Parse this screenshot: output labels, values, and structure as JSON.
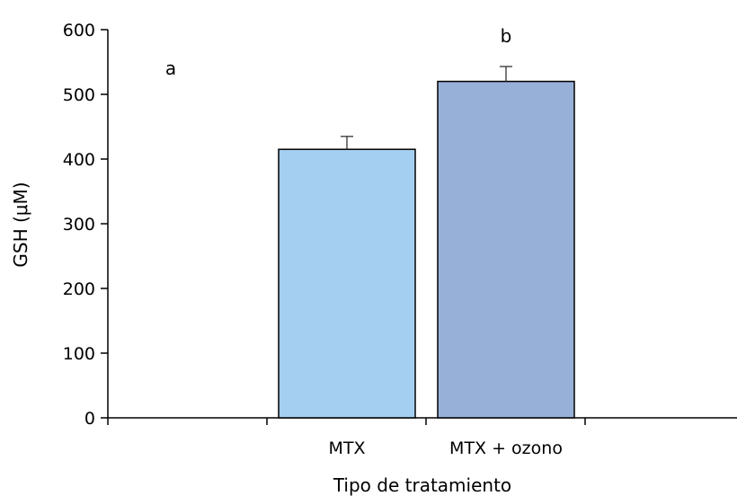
{
  "chart_data": {
    "type": "bar",
    "categories": [
      "MTX",
      "MTX + ozono"
    ],
    "values": [
      415,
      520
    ],
    "errors": [
      20,
      23
    ],
    "colors": [
      "#a4cff0",
      "#97b0d8"
    ],
    "xlabel": "Tipo de tratamiento",
    "ylabel": "GSH (μM)",
    "ylim": [
      0,
      600
    ],
    "yticks": [
      0,
      100,
      200,
      300,
      400,
      500,
      600
    ],
    "grid": false,
    "annotations": [
      {
        "text": "a",
        "x": "left",
        "y": 540
      },
      {
        "text": "b",
        "x": "MTX + ozono",
        "y": 590
      }
    ]
  }
}
